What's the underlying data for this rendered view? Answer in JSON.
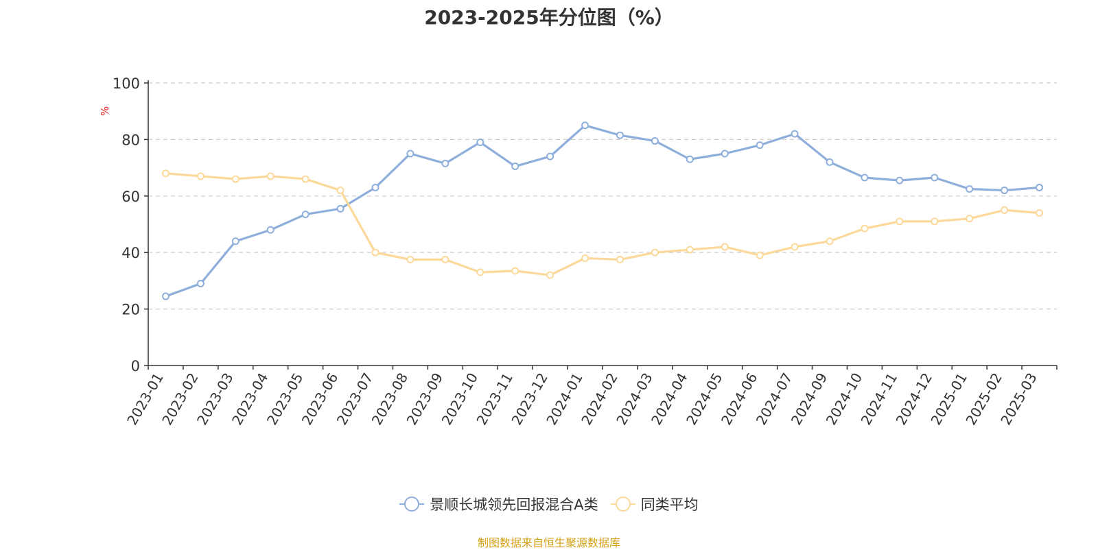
{
  "chart_data": {
    "type": "line",
    "title": "2023-2025年分位图（%）",
    "ylabel": "%",
    "ylim": [
      0,
      100
    ],
    "yticks": [
      0,
      20,
      40,
      60,
      80,
      100
    ],
    "grid": true,
    "categories": [
      "2023-01",
      "2023-02",
      "2023-03",
      "2023-04",
      "2023-05",
      "2023-06",
      "2023-07",
      "2023-08",
      "2023-09",
      "2023-10",
      "2023-11",
      "2023-12",
      "2024-01",
      "2024-02",
      "2024-03",
      "2024-04",
      "2024-05",
      "2024-06",
      "2024-07",
      "2024-09",
      "2024-10",
      "2024-11",
      "2024-12",
      "2025-01",
      "2025-02",
      "2025-03"
    ],
    "series": [
      {
        "name": "景顺长城领先回报混合A类",
        "color": "#8eaedb",
        "values": [
          24.5,
          29,
          44,
          48,
          53.5,
          55.5,
          63,
          75,
          71.5,
          79,
          70.5,
          74,
          85,
          81.5,
          79.5,
          73,
          75,
          78,
          82,
          72,
          66.5,
          65.5,
          66.5,
          62.5,
          62,
          63
        ]
      },
      {
        "name": "同类平均",
        "color": "#fcd99a",
        "values": [
          68,
          67,
          66,
          67,
          66,
          62,
          40,
          37.5,
          37.5,
          33,
          33.5,
          32,
          38,
          37.5,
          40,
          41,
          42,
          39,
          42,
          44,
          48.5,
          51,
          51,
          52,
          55,
          54
        ]
      }
    ],
    "legend_position": "bottom-center"
  },
  "source_text": "制图数据来自恒生聚源数据库"
}
